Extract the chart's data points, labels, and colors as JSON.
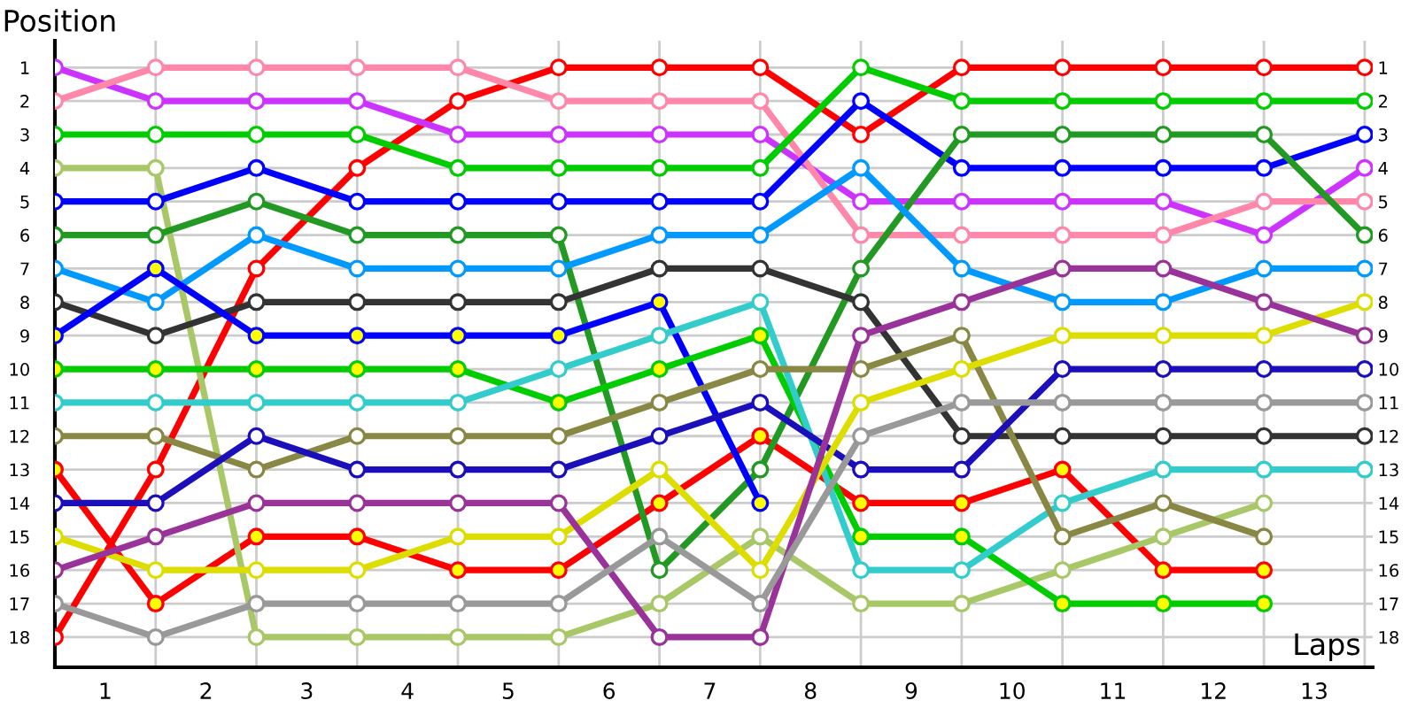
{
  "chart_data": {
    "type": "line",
    "xlabel": "Laps",
    "ylabel": "Position",
    "x": [
      0,
      1,
      2,
      3,
      4,
      5,
      6,
      7,
      8,
      9,
      10,
      11,
      12,
      13
    ],
    "xlim": [
      0,
      13.08
    ],
    "ylim": [
      18.9,
      0.2
    ],
    "xticks": [
      {
        "value": 0,
        "label": null
      },
      {
        "value": 1,
        "label": null
      },
      {
        "value": 2,
        "label": null
      },
      {
        "value": 3,
        "label": null
      },
      {
        "value": 4,
        "label": null
      },
      {
        "value": 5,
        "label": null
      },
      {
        "value": 6,
        "label": null
      },
      {
        "value": 7,
        "label": null
      },
      {
        "value": 8,
        "label": null
      },
      {
        "value": 9,
        "label": null
      },
      {
        "value": 10,
        "label": null
      },
      {
        "value": 11,
        "label": null
      },
      {
        "value": 12,
        "label": null
      },
      {
        "value": 13,
        "label": null
      },
      {
        "value": 0.5,
        "label": "1"
      },
      {
        "value": 1.5,
        "label": "2"
      },
      {
        "value": 2.5,
        "label": "3"
      },
      {
        "value": 3.5,
        "label": "4"
      },
      {
        "value": 4.5,
        "label": "5"
      },
      {
        "value": 5.5,
        "label": "6"
      },
      {
        "value": 6.5,
        "label": "7"
      },
      {
        "value": 7.5,
        "label": "8"
      },
      {
        "value": 8.5,
        "label": "9"
      },
      {
        "value": 9.5,
        "label": "10"
      },
      {
        "value": 10.5,
        "label": "11"
      },
      {
        "value": 11.5,
        "label": "12"
      },
      {
        "value": 12.5,
        "label": "13"
      }
    ],
    "yticks": [
      1,
      2,
      3,
      4,
      5,
      6,
      7,
      8,
      9,
      10,
      11,
      12,
      13,
      14,
      15,
      16,
      17,
      18
    ],
    "y2lim": [
      18.9,
      0.2
    ],
    "y2ticks": [
      1,
      2,
      3,
      4,
      5,
      6,
      7,
      8,
      9,
      10,
      11,
      12,
      13,
      14,
      15,
      16,
      17,
      18
    ],
    "grid": true,
    "marker": "circle",
    "line_style": "solid",
    "series": [
      {
        "color": "#ff0000",
        "values": [
          18,
          13,
          7,
          4,
          2,
          1,
          1,
          1,
          3,
          1,
          1,
          1,
          1,
          1
        ]
      },
      {
        "color": "#ff0000",
        "values": [
          13,
          17,
          15,
          15,
          16,
          16,
          14,
          12,
          14,
          14,
          13,
          16,
          16,
          null
        ],
        "colors": [
          "#ffff00",
          "#ffff00",
          "#ffff00",
          "#ffff00",
          "#ffff00",
          "#ffff00",
          "#ffff00",
          "#ffff00",
          "#ffff00",
          "#ffff00",
          "#ffff00",
          "#ffff00",
          "#ffff00",
          null
        ]
      },
      {
        "color": "#cc33ff",
        "values": [
          1,
          2,
          2,
          2,
          3,
          3,
          3,
          3,
          5,
          5,
          5,
          5,
          6,
          4
        ]
      },
      {
        "color": "#ff88aa",
        "values": [
          2,
          1,
          1,
          1,
          1,
          2,
          2,
          2,
          6,
          6,
          6,
          6,
          5,
          5
        ]
      },
      {
        "color": "#00cc00",
        "values": [
          3,
          3,
          3,
          3,
          4,
          4,
          4,
          4,
          1,
          2,
          2,
          2,
          2,
          2
        ]
      },
      {
        "color": "#a8c868",
        "values": [
          4,
          4,
          18,
          18,
          18,
          18,
          17,
          15,
          17,
          17,
          16,
          15,
          14,
          null
        ]
      },
      {
        "color": "#0000ff",
        "values": [
          5,
          5,
          4,
          5,
          5,
          5,
          5,
          5,
          2,
          4,
          4,
          4,
          4,
          3
        ]
      },
      {
        "color": "#229922",
        "values": [
          6,
          6,
          5,
          6,
          6,
          6,
          16,
          13,
          7,
          3,
          3,
          3,
          3,
          6
        ]
      },
      {
        "color": "#0099ff",
        "values": [
          7,
          8,
          6,
          7,
          7,
          7,
          6,
          6,
          4,
          7,
          8,
          8,
          7,
          7
        ]
      },
      {
        "color": "#333333",
        "values": [
          8,
          9,
          8,
          8,
          8,
          8,
          7,
          7,
          8,
          12,
          12,
          12,
          12,
          12
        ]
      },
      {
        "color": "#0000ff",
        "values": [
          9,
          7,
          9,
          9,
          9,
          9,
          8,
          14,
          null,
          null,
          null,
          null,
          null,
          null
        ],
        "colors": [
          "#ffff00",
          "#ffff00",
          "#ffff00",
          "#ffff00",
          "#ffff00",
          "#ffff00",
          "#ffff00",
          "#ffff00",
          null,
          null,
          null,
          null,
          null,
          null
        ]
      },
      {
        "color": "#00cc00",
        "values": [
          10,
          10,
          10,
          10,
          10,
          11,
          10,
          9,
          15,
          15,
          17,
          17,
          17,
          null
        ],
        "colors": [
          "#ffff00",
          "#ffff00",
          "#ffff00",
          "#ffff00",
          "#ffff00",
          "#ffff00",
          "#ffff00",
          "#ffff00",
          "#ffff00",
          "#ffff00",
          "#ffff00",
          "#ffff00",
          "#ffff00",
          null
        ]
      },
      {
        "color": "#33cccc",
        "values": [
          11,
          11,
          11,
          11,
          11,
          10,
          9,
          8,
          16,
          16,
          14,
          13,
          13,
          13
        ]
      },
      {
        "color": "#888844",
        "values": [
          12,
          12,
          13,
          12,
          12,
          12,
          11,
          10,
          10,
          9,
          15,
          14,
          15,
          null
        ]
      },
      {
        "color": "#1a0fbb",
        "values": [
          14,
          14,
          12,
          13,
          13,
          13,
          12,
          11,
          13,
          13,
          10,
          10,
          10,
          10
        ]
      },
      {
        "color": "#dddd00",
        "values": [
          15,
          16,
          16,
          16,
          15,
          15,
          13,
          16,
          11,
          10,
          9,
          9,
          9,
          8
        ]
      },
      {
        "color": "#993399",
        "values": [
          16,
          15,
          14,
          14,
          14,
          14,
          18,
          18,
          9,
          8,
          7,
          7,
          8,
          9
        ]
      },
      {
        "color": "#999999",
        "values": [
          17,
          18,
          17,
          17,
          17,
          17,
          15,
          17,
          12,
          11,
          11,
          11,
          11,
          11
        ]
      }
    ]
  }
}
